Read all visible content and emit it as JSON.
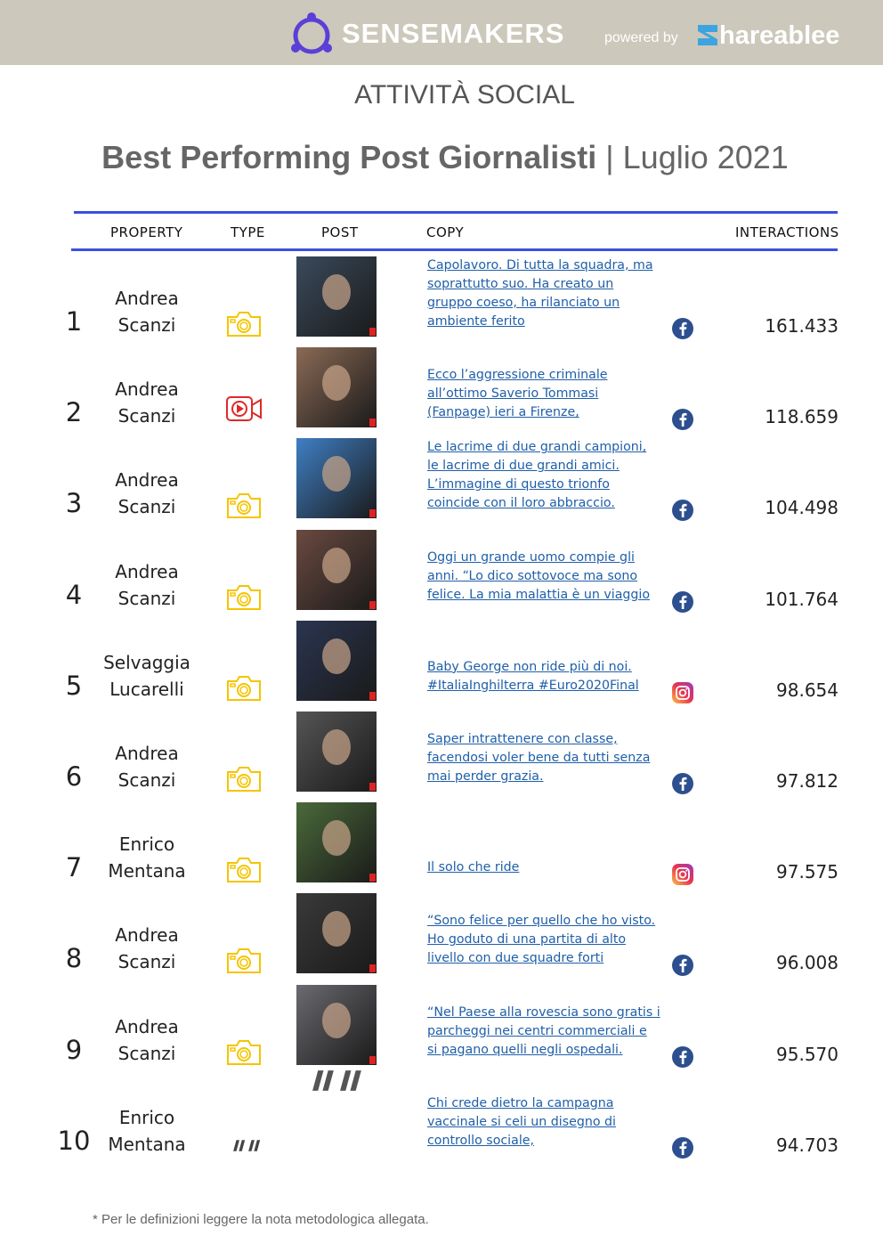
{
  "header": {
    "brand": "SENSEMAKERS",
    "powered": "powered by",
    "partner": "hareablee"
  },
  "section": "ATTIVITÀ SOCIAL",
  "title": {
    "main": "Best Performing Post Giornalisti",
    "separator": "|",
    "period": "Luglio 2021"
  },
  "table": {
    "columns": [
      "PROPERTY",
      "TYPE",
      "POST",
      "COPY",
      "INTERACTIONS"
    ],
    "rows": [
      {
        "rank": 1,
        "property": "Andrea Scanzi",
        "type": "photo",
        "copy": "Capolavoro. Di tutta la squadra, ma soprattutto suo. Ha creato un gruppo coeso, ha rilanciato un ambiente ferito",
        "network": "facebook",
        "interactions": "161.433"
      },
      {
        "rank": 2,
        "property": "Andrea Scanzi",
        "type": "video",
        "copy": "Ecco l’aggressione criminale all’ottimo Saverio Tommasi (Fanpage) ieri a Firenze,",
        "network": "facebook",
        "interactions": "118.659"
      },
      {
        "rank": 3,
        "property": "Andrea Scanzi",
        "type": "photo",
        "copy": "Le lacrime di due grandi campioni, le lacrime di due grandi amici. L’immagine di questo trionfo coincide con il loro abbraccio.",
        "network": "facebook",
        "interactions": "104.498"
      },
      {
        "rank": 4,
        "property": "Andrea Scanzi",
        "type": "photo",
        "copy": "Oggi un grande uomo compie gli anni. “Lo dico sottovoce ma sono felice. La mia malattia è un viaggio",
        "network": "facebook",
        "interactions": "101.764"
      },
      {
        "rank": 5,
        "property": "Selvaggia Lucarelli",
        "type": "photo",
        "copy": "Baby George non ride più di noi. #ItaliaInghilterra #Euro2020Final",
        "network": "instagram",
        "interactions": "98.654"
      },
      {
        "rank": 6,
        "property": "Andrea Scanzi",
        "type": "photo",
        "copy": "Saper intrattenere con classe, facendosi voler bene da tutti senza mai perder grazia.",
        "network": "facebook",
        "interactions": "97.812"
      },
      {
        "rank": 7,
        "property": "Enrico Mentana",
        "type": "photo",
        "copy": "Il solo che ride",
        "network": "instagram",
        "interactions": "97.575"
      },
      {
        "rank": 8,
        "property": "Andrea Scanzi",
        "type": "photo",
        "copy": "“Sono felice per quello che ho visto. Ho goduto di una partita di alto livello con due squadre forti",
        "network": "facebook",
        "interactions": "96.008"
      },
      {
        "rank": 9,
        "property": "Andrea Scanzi",
        "type": "photo",
        "copy": "“Nel Paese alla rovescia sono gratis i parcheggi nei centri commerciali e si pagano quelli negli ospedali.",
        "network": "facebook",
        "interactions": "95.570"
      },
      {
        "rank": 10,
        "property": "Enrico Mentana",
        "type": "text",
        "copy": "Chi crede dietro la campagna vaccinale si celi un disegno di controllo sociale,",
        "network": "facebook",
        "interactions": "94.703"
      }
    ]
  },
  "footnote": "* Per le definizioni leggere la nota metodologica allegata."
}
